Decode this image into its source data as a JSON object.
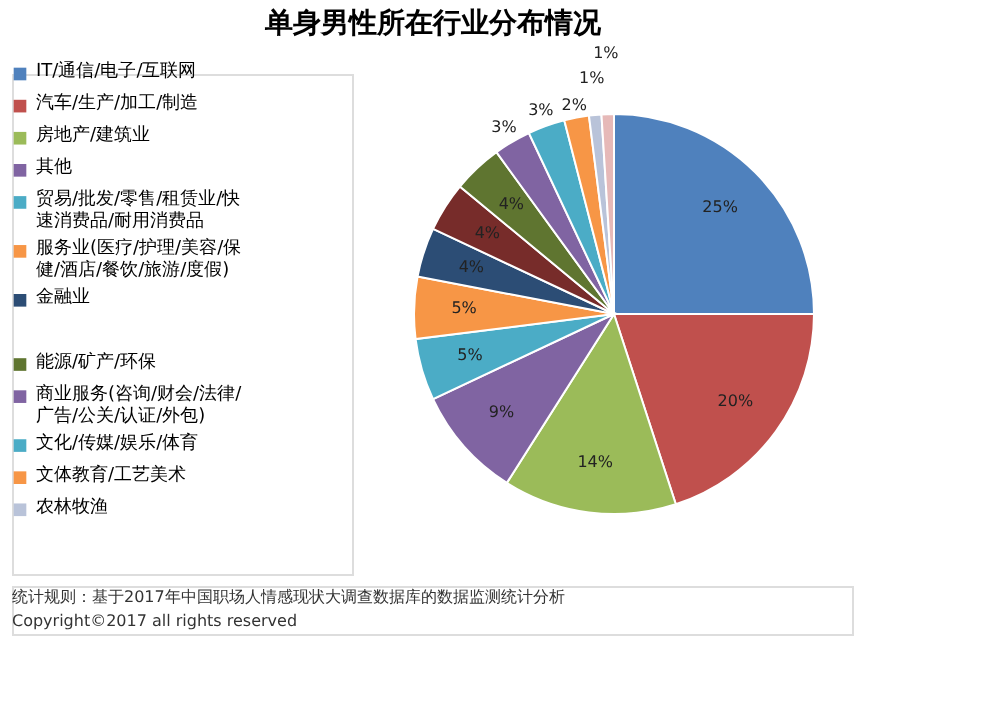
{
  "chart_data": {
    "type": "pie",
    "title": "单身男性所在行业分布情况",
    "categories": [
      "IT/通信/电子/互联网",
      "汽车/生产/加工/制造",
      "房地产/建筑业",
      "其他",
      "贸易/批发/零售/租赁业/快速消费品/耐用消费品",
      "服务业(医疗/护理/美容/保健/酒店/餐饮/旅游/度假)",
      "金融业",
      null,
      "能源/矿产/环保",
      "商业服务(咨询/财会/法律/广告/公关/认证/外包)",
      "文化/传媒/娱乐/体育",
      "文体教育/工艺美术",
      "农林牧渔",
      null
    ],
    "values": [
      25,
      20,
      14,
      9,
      5,
      5,
      4,
      4,
      4,
      3,
      3,
      2,
      1,
      1
    ],
    "value_labels": [
      "25%",
      "20%",
      "14%",
      "9%",
      "5%",
      "5%",
      "4%",
      "4%",
      "4%",
      "3%",
      "3%",
      "2%",
      "1%",
      "1%"
    ],
    "colors": [
      "#4f81bd",
      "#c0504d",
      "#9bbb59",
      "#8064a2",
      "#4bacc6",
      "#f79646",
      "#2c4d75",
      "#772c2a",
      "#5f7530",
      "#8064a2",
      "#4bacc6",
      "#f79646",
      "#b9c3d9",
      "#e6b9b8"
    ],
    "legend": "left",
    "annotations": [
      "统计规则：基于2017年中国职场人情感现状大调查数据库的数据监测统计分析",
      "Copyright©2017 all rights reserved"
    ]
  }
}
